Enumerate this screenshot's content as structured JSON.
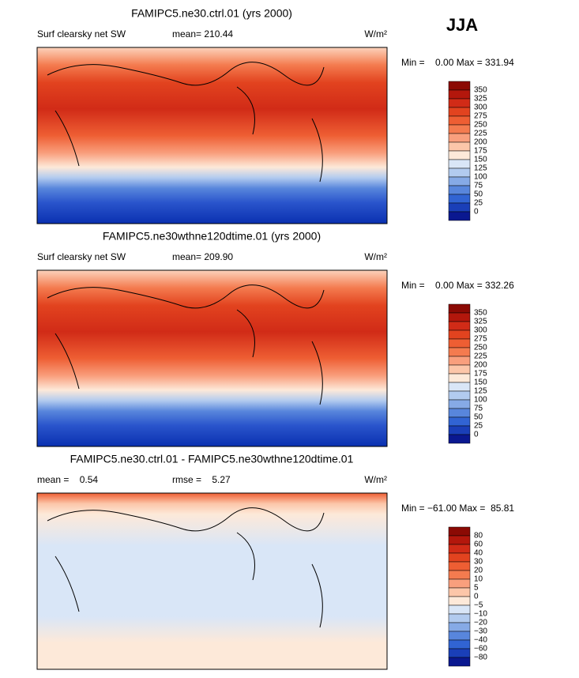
{
  "season": "JJA",
  "panels": [
    {
      "title": "FAMIPC5.ne30.ctrl.01 (yrs 2000)",
      "left": "Surf clearsky net SW",
      "middle": "mean= 210.44",
      "units": "W/m²",
      "range": "Min =    0.00 Max = 331.94",
      "levels": [
        "350",
        "325",
        "300",
        "275",
        "250",
        "225",
        "200",
        "175",
        "150",
        "125",
        "100",
        "75",
        "50",
        "25",
        "0"
      ],
      "colors": [
        "#8b0a04",
        "#b3170c",
        "#d12b17",
        "#e2431f",
        "#ee5e33",
        "#f47b4f",
        "#f99f7d",
        "#fcc6a9",
        "#fde9d9",
        "#d9e6f7",
        "#b2cbef",
        "#86aae6",
        "#5886dc",
        "#3164d3",
        "#1a3fb8",
        "#0a1890"
      ]
    },
    {
      "title": "FAMIPC5.ne30wthne120dtime.01 (yrs 2000)",
      "left": "Surf clearsky net SW",
      "middle": "mean= 209.90",
      "units": "W/m²",
      "range": "Min =    0.00 Max = 332.26",
      "levels": [
        "350",
        "325",
        "300",
        "275",
        "250",
        "225",
        "200",
        "175",
        "150",
        "125",
        "100",
        "75",
        "50",
        "25",
        "0"
      ],
      "colors": [
        "#8b0a04",
        "#b3170c",
        "#d12b17",
        "#e2431f",
        "#ee5e33",
        "#f47b4f",
        "#f99f7d",
        "#fcc6a9",
        "#fde9d9",
        "#d9e6f7",
        "#b2cbef",
        "#86aae6",
        "#5886dc",
        "#3164d3",
        "#1a3fb8",
        "#0a1890"
      ]
    },
    {
      "title": "FAMIPC5.ne30.ctrl.01 - FAMIPC5.ne30wthne120dtime.01",
      "left": "mean =    0.54",
      "middle": "rmse =    5.27",
      "units": "W/m²",
      "range": "Min = −61.00 Max =  85.81",
      "levels": [
        "80",
        "60",
        "40",
        "30",
        "20",
        "10",
        "5",
        "0",
        "−5",
        "−10",
        "−20",
        "−30",
        "−40",
        "−60",
        "−80"
      ],
      "colors": [
        "#8b0a04",
        "#b3170c",
        "#d12b17",
        "#e2431f",
        "#ee5e33",
        "#f47b4f",
        "#f99f7d",
        "#fcc6a9",
        "#fde9d9",
        "#d9e6f7",
        "#b2cbef",
        "#86aae6",
        "#5886dc",
        "#3164d3",
        "#1a3fb8",
        "#0a1890"
      ]
    }
  ]
}
